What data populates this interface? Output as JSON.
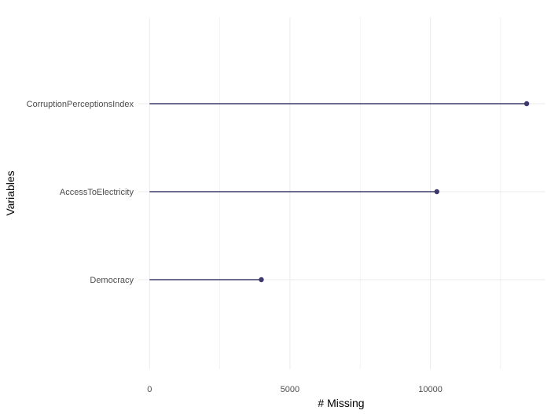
{
  "chart_data": {
    "type": "lollipop",
    "xlabel": "# Missing",
    "ylabel": "Variables",
    "xlim": [
      -400,
      14100
    ],
    "x_ticks": [
      0,
      5000,
      10000
    ],
    "x_ticks_labels": [
      "0",
      "5000",
      "10000"
    ],
    "grid": true,
    "categories": [
      "CorruptionPerceptionsIndex",
      "AccessToElectricity",
      "Democracy"
    ],
    "values": [
      13430,
      10230,
      3980
    ],
    "colors": {
      "segment": "#3e3a6b",
      "point": "#3e3a6b",
      "grid": "#ebebeb"
    }
  }
}
